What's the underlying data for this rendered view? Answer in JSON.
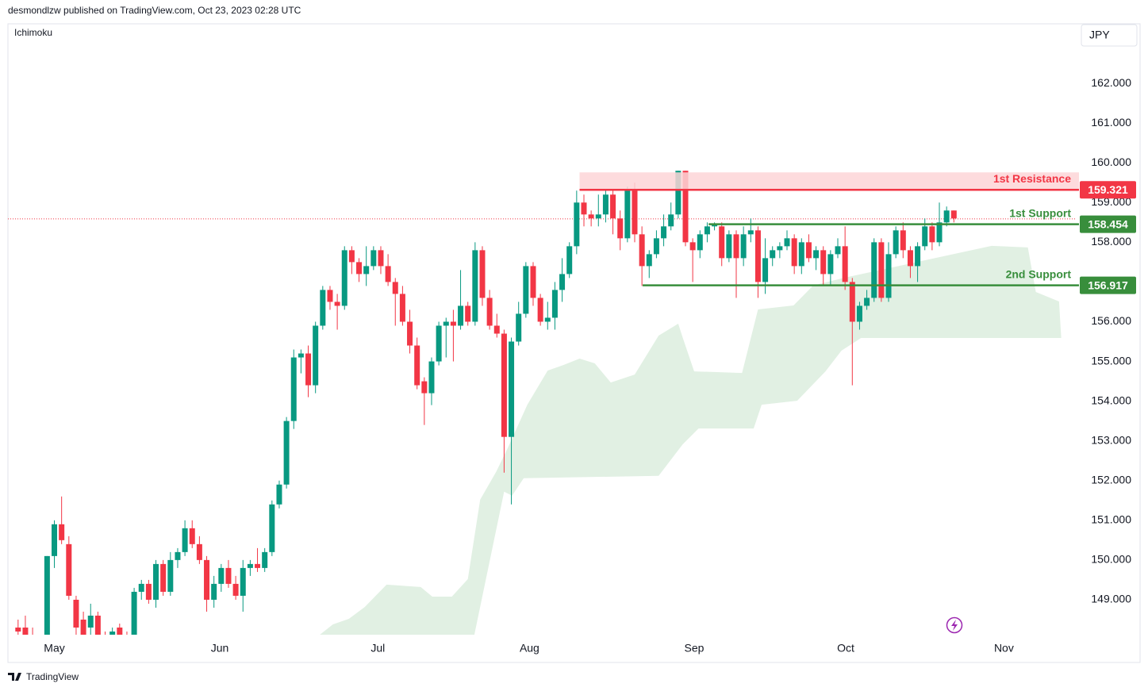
{
  "header": {
    "publisher": "desmondlzw published on TradingView.com, Oct 23, 2023 02:28 UTC",
    "indicator": "Ichimoku",
    "currency": "JPY",
    "brand": "TradingView"
  },
  "chart_data": {
    "type": "candlestick",
    "up_color": "#089981",
    "down_color": "#f23645",
    "xlim": [
      -1.4,
      145.7
    ],
    "xticks": [
      {
        "value": 5,
        "label": "May"
      },
      {
        "value": 27.8,
        "label": "Jun"
      },
      {
        "value": 49.6,
        "label": "Jul"
      },
      {
        "value": 70.5,
        "label": "Aug"
      },
      {
        "value": 93.2,
        "label": "Sep"
      },
      {
        "value": 114.1,
        "label": "Oct"
      },
      {
        "value": 135.9,
        "label": "Nov"
      }
    ],
    "ylim": [
      148.12,
      163.5
    ],
    "yticks": [
      {
        "value": 149,
        "label": "149.000"
      },
      {
        "value": 150,
        "label": "150.000"
      },
      {
        "value": 151,
        "label": "151.000"
      },
      {
        "value": 152,
        "label": "152.000"
      },
      {
        "value": 153,
        "label": "153.000"
      },
      {
        "value": 154,
        "label": "154.000"
      },
      {
        "value": 155,
        "label": "155.000"
      },
      {
        "value": 156,
        "label": "156.000"
      },
      {
        "value": 157,
        "label": "157.000"
      },
      {
        "value": 158,
        "label": "158.000"
      },
      {
        "value": 159,
        "label": "159.000"
      },
      {
        "value": 160,
        "label": "160.000"
      },
      {
        "value": 161,
        "label": "161.000"
      },
      {
        "value": 162,
        "label": "162.000"
      }
    ],
    "open": [
      148.3,
      148.3,
      148.1,
      147.7,
      148.0,
      150.1,
      150.9,
      150.4,
      149.0,
      148.5,
      148.3,
      148.6,
      148.1,
      148.0,
      148.3,
      148.0,
      148.1,
      149.2,
      149.4,
      149.0,
      149.9,
      149.2,
      150.0,
      150.2,
      150.8,
      150.4,
      150.0,
      149.0,
      149.4,
      149.8,
      149.4,
      149.1,
      149.8,
      149.9,
      149.8,
      150.2,
      151.4,
      151.9,
      153.5,
      155.1,
      155.2,
      154.4,
      155.9,
      156.8,
      156.5,
      156.4,
      157.8,
      157.5,
      157.2,
      157.4,
      157.8,
      157.4,
      157.0,
      156.7,
      156.0,
      155.4,
      154.5,
      154.2,
      155.0,
      155.9,
      156.0,
      155.9,
      156.4,
      156.0,
      157.8,
      156.6,
      155.9,
      155.7,
      153.1,
      155.5,
      156.2,
      157.4,
      156.6,
      156.0,
      156.1,
      156.8,
      157.2,
      157.9,
      159.0,
      158.7,
      158.6,
      158.7,
      159.2,
      158.6,
      158.1,
      159.3,
      158.2,
      157.4,
      157.7,
      158.1,
      158.4,
      158.7,
      159.8,
      158.0,
      157.8,
      158.2,
      158.4,
      158.4,
      157.6,
      158.2,
      157.6,
      158.2,
      158.3,
      157.0,
      157.6,
      157.8,
      157.9,
      158.1,
      157.4,
      158.0,
      157.6,
      157.8,
      157.2,
      157.7,
      157.9,
      157.0,
      156.0,
      156.4,
      156.6,
      158.0,
      156.6,
      157.7,
      158.3,
      157.8,
      157.4,
      157.9,
      158.4,
      158.0,
      158.5,
      158.8
    ],
    "high": [
      148.5,
      148.6,
      148.3,
      148.0,
      150.1,
      151.0,
      151.6,
      150.6,
      149.1,
      148.7,
      148.9,
      148.7,
      148.2,
      148.3,
      148.4,
      148.2,
      149.3,
      149.5,
      149.5,
      150.0,
      150.0,
      150.2,
      150.3,
      151.0,
      151.0,
      150.6,
      150.1,
      149.6,
      149.9,
      150.0,
      149.6,
      150.0,
      150.0,
      150.3,
      150.3,
      151.5,
      152.0,
      153.6,
      155.3,
      155.3,
      155.4,
      156.0,
      156.9,
      156.9,
      156.7,
      157.9,
      157.9,
      157.6,
      157.9,
      157.9,
      157.9,
      157.7,
      157.1,
      156.9,
      156.3,
      155.6,
      154.6,
      155.1,
      156.0,
      156.1,
      156.3,
      157.3,
      156.5,
      158.0,
      157.9,
      156.8,
      156.2,
      155.8,
      155.6,
      156.5,
      157.5,
      157.5,
      156.7,
      156.5,
      157.0,
      157.6,
      158.0,
      159.3,
      159.2,
      158.8,
      159.2,
      159.3,
      159.3,
      158.8,
      159.4,
      159.5,
      158.4,
      157.8,
      158.3,
      158.7,
      159.0,
      159.8,
      159.8,
      158.1,
      158.3,
      158.5,
      158.5,
      158.5,
      158.3,
      158.3,
      158.4,
      158.6,
      158.4,
      158.1,
      157.9,
      158.0,
      158.3,
      158.2,
      158.1,
      158.2,
      157.9,
      157.9,
      157.8,
      158.1,
      158.4,
      157.1,
      156.5,
      156.8,
      158.1,
      158.1,
      158.0,
      158.4,
      158.5,
      157.9,
      158.0,
      158.6,
      158.5,
      159.0,
      158.9,
      158.8
    ],
    "low": [
      148.1,
      148.1,
      147.5,
      147.3,
      147.9,
      149.8,
      150.4,
      149.0,
      148.1,
      147.8,
      148.1,
      147.9,
      147.8,
      147.7,
      147.9,
      147.6,
      148.0,
      149.0,
      148.9,
      148.8,
      149.1,
      149.1,
      149.8,
      150.1,
      150.3,
      149.9,
      148.7,
      148.8,
      149.2,
      149.3,
      149.0,
      148.7,
      149.6,
      149.7,
      149.7,
      150.1,
      151.3,
      151.8,
      153.3,
      154.7,
      154.1,
      154.2,
      155.8,
      156.3,
      155.8,
      156.3,
      157.2,
      157.0,
      156.9,
      157.3,
      157.2,
      156.9,
      155.9,
      155.9,
      155.2,
      154.3,
      153.4,
      153.9,
      154.9,
      155.1,
      155.0,
      155.8,
      155.9,
      155.9,
      156.4,
      155.8,
      155.6,
      152.2,
      151.4,
      155.4,
      156.1,
      156.4,
      155.9,
      155.8,
      155.8,
      156.5,
      157.1,
      157.7,
      158.4,
      158.4,
      158.4,
      158.5,
      158.2,
      157.8,
      158.0,
      158.0,
      156.9,
      157.1,
      157.6,
      157.9,
      158.3,
      158.6,
      157.9,
      157.0,
      157.6,
      158.0,
      158.3,
      157.4,
      157.5,
      156.6,
      157.4,
      158.0,
      156.6,
      156.7,
      157.4,
      157.6,
      157.8,
      157.2,
      157.2,
      157.5,
      157.3,
      156.9,
      156.9,
      157.6,
      156.8,
      154.4,
      155.8,
      156.3,
      156.5,
      156.5,
      156.5,
      157.6,
      157.6,
      157.1,
      157.0,
      157.8,
      157.8,
      157.9,
      158.4,
      158.5
    ],
    "close": [
      148.2,
      148.1,
      147.7,
      147.9,
      150.1,
      150.9,
      150.5,
      149.1,
      148.3,
      148.0,
      148.6,
      148.1,
      148.0,
      148.2,
      148.1,
      147.9,
      149.2,
      149.4,
      149.0,
      149.9,
      149.2,
      150.0,
      150.2,
      150.8,
      150.4,
      150.0,
      149.0,
      149.4,
      149.8,
      149.4,
      149.1,
      149.8,
      149.9,
      149.8,
      150.2,
      151.4,
      151.9,
      153.5,
      155.1,
      155.2,
      154.4,
      155.9,
      156.8,
      156.5,
      156.4,
      157.8,
      157.5,
      157.2,
      157.4,
      157.8,
      157.4,
      157.0,
      156.7,
      156.0,
      155.4,
      154.4,
      154.2,
      155.0,
      155.9,
      156.0,
      155.9,
      156.4,
      156.0,
      157.8,
      156.6,
      155.9,
      155.7,
      153.1,
      155.5,
      156.2,
      157.4,
      156.6,
      156.0,
      156.1,
      156.8,
      157.2,
      157.9,
      159.0,
      158.7,
      158.6,
      158.7,
      159.2,
      158.6,
      158.1,
      159.3,
      158.2,
      157.4,
      157.7,
      158.1,
      158.4,
      158.7,
      159.8,
      158.0,
      157.8,
      158.2,
      158.4,
      158.45,
      157.6,
      158.2,
      157.6,
      158.2,
      158.3,
      157.0,
      157.6,
      157.8,
      157.9,
      158.1,
      157.4,
      158.0,
      157.6,
      157.8,
      157.2,
      157.7,
      157.9,
      157.0,
      156.0,
      156.4,
      156.6,
      158.0,
      156.6,
      157.7,
      158.3,
      157.8,
      157.4,
      157.9,
      158.4,
      158.0,
      158.5,
      158.8,
      158.6
    ],
    "cloud": {
      "color": "#e1f0e3",
      "x": [
        35.8,
        41.6,
        43.4,
        45.6,
        47.8,
        50.8,
        55.5,
        57.1,
        59.8,
        62.0,
        63.7,
        65.9,
        67.5,
        70.2,
        73.0,
        75.2,
        77.4,
        79.5,
        81.7,
        85.0,
        88.3,
        91.0,
        91.6,
        93.2,
        99.8,
        102.0,
        106.9,
        109.6,
        114.0,
        134.2,
        139.2,
        140.3,
        143.5,
        143.8,
        116.2,
        113.5,
        111.3,
        107.4,
        102.5,
        101.4,
        93.8,
        91.6,
        88.3,
        69.7,
        68.1,
        67.0,
        62.9
      ],
      "values": [
        148.12,
        148.12,
        148.38,
        148.52,
        148.82,
        149.38,
        149.32,
        149.08,
        149.08,
        149.52,
        151.52,
        152.22,
        152.82,
        153.91,
        154.77,
        154.91,
        155.07,
        154.95,
        154.47,
        154.67,
        155.65,
        155.95,
        155.61,
        154.75,
        154.71,
        156.31,
        156.41,
        156.91,
        157.11,
        157.91,
        157.87,
        156.75,
        156.51,
        155.59,
        155.59,
        155.27,
        154.75,
        154.01,
        153.91,
        153.31,
        153.31,
        152.91,
        152.12,
        152.06,
        151.62,
        151.72,
        148.12
      ]
    },
    "last_price": {
      "value": 158.59,
      "color": "#f23645"
    },
    "zone": {
      "from": 159.3,
      "to": 159.76,
      "start": 77.4,
      "color": "#fdd5d7"
    },
    "levels": [
      {
        "label": "1st Resistance",
        "value": 159.321,
        "start": 77.4,
        "color": "#f23645"
      },
      {
        "label": "1st Support",
        "value": 158.454,
        "start": 95.2,
        "color": "#388e3c"
      },
      {
        "label": "2nd Support",
        "value": 156.917,
        "start": 86.1,
        "color": "#388e3c"
      }
    ]
  }
}
